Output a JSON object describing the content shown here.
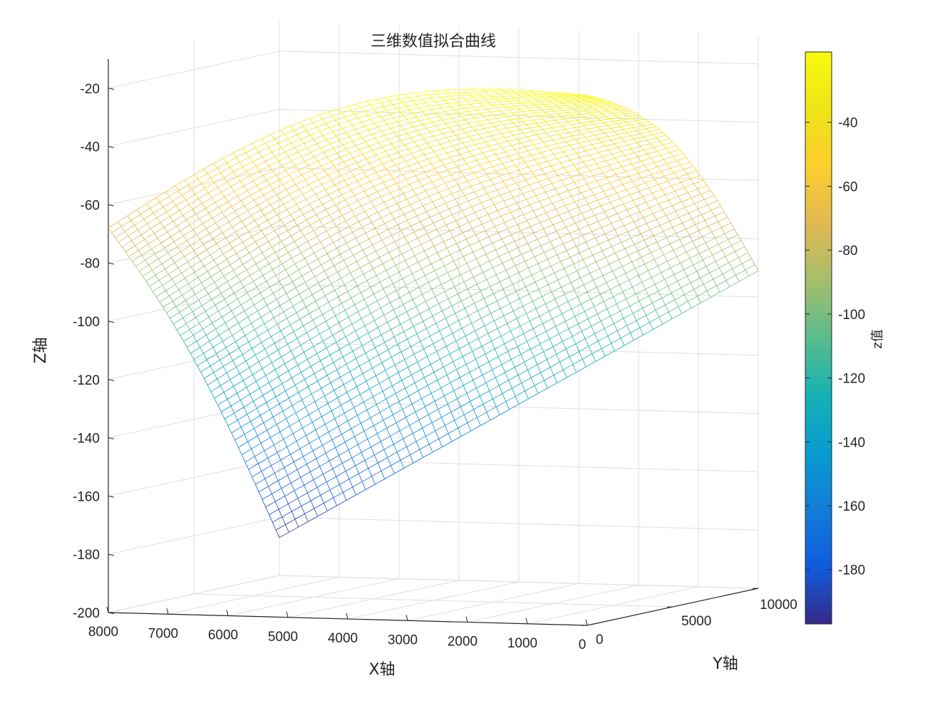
{
  "chart_data": {
    "type": "surface-mesh",
    "title": "三维数值拟合曲线",
    "xlabel": "X轴",
    "ylabel": "Y轴",
    "zlabel": "Z轴",
    "colorbar_label": "z值",
    "x_range": [
      0,
      8000
    ],
    "y_range": [
      0,
      10000
    ],
    "z_range": [
      -200,
      -10
    ],
    "x_ticks": [
      "8000",
      "7000",
      "6000",
      "5000",
      "4000",
      "3000",
      "2000",
      "1000",
      "0"
    ],
    "y_ticks": [
      "10000",
      "5000",
      "0"
    ],
    "z_ticks": [
      "-20",
      "-40",
      "-60",
      "-80",
      "-100",
      "-120",
      "-140",
      "-160",
      "-180",
      "-200"
    ],
    "colorbar_ticks": [
      "-40",
      "-60",
      "-80",
      "-100",
      "-120",
      "-140",
      "-160",
      "-180"
    ],
    "colorbar_range": [
      -197,
      -18
    ],
    "colormap": "parula",
    "corner_z": {
      "x0_y0": -18,
      "x0_y10000": -91,
      "x8000_y0": -68,
      "x8000_y10000": -187
    },
    "surface_peak_z": -18,
    "surface_min_z": -187,
    "mesh_resolution": [
      50,
      50
    ],
    "grid": "on"
  }
}
